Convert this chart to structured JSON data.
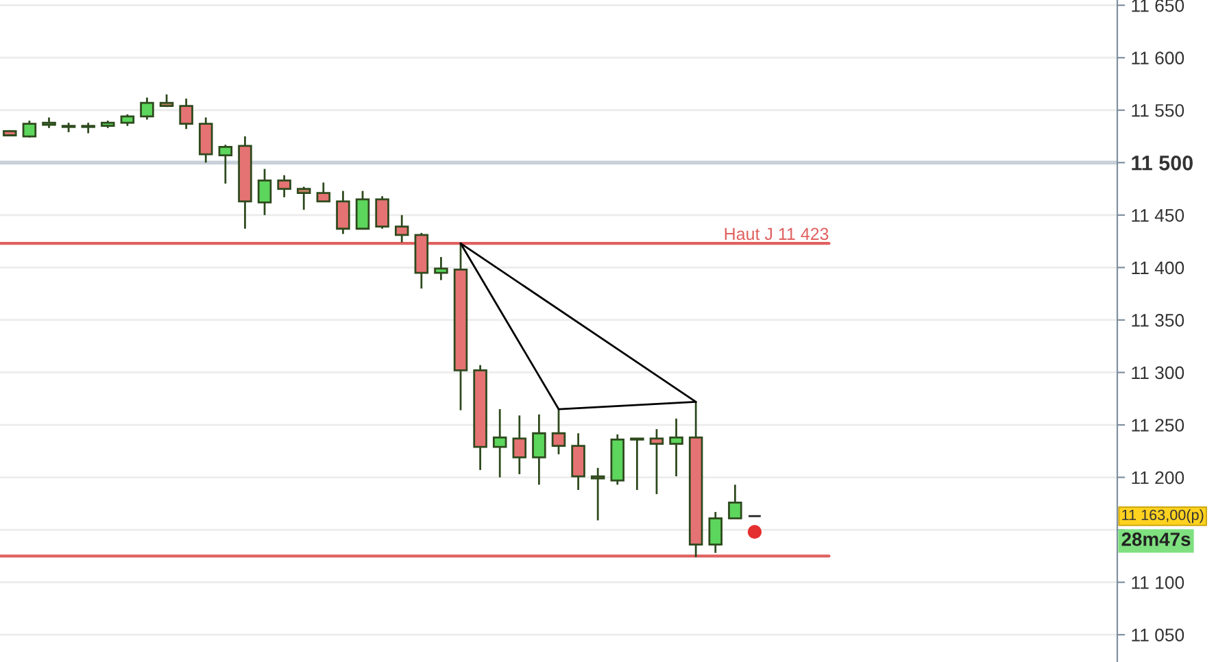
{
  "chart_data": {
    "type": "candlestick",
    "categories": [
      null,
      null,
      null,
      null,
      null,
      null,
      null,
      null,
      null,
      null,
      null,
      null,
      null,
      null,
      null,
      null,
      null,
      null,
      null,
      null,
      null,
      null,
      null,
      null,
      null,
      null,
      null,
      null,
      null,
      null,
      null,
      null,
      null,
      null,
      null,
      null,
      null,
      null,
      null,
      null,
      null,
      null,
      null,
      null,
      null,
      null,
      null,
      null,
      null,
      null,
      null,
      null,
      null,
      null,
      null,
      null,
      null
    ],
    "ohlc": [
      [
        11530,
        11531,
        11525,
        11526
      ],
      [
        11525,
        11540,
        11524,
        11537
      ],
      [
        11536,
        11543,
        11533,
        11538
      ],
      [
        11534,
        11538,
        11529,
        11535
      ],
      [
        11534,
        11538,
        11528,
        11535
      ],
      [
        11535,
        11540,
        11533,
        11538
      ],
      [
        11538,
        11546,
        11535,
        11544
      ],
      [
        11544,
        11562,
        11541,
        11557
      ],
      [
        11557,
        11565,
        11553,
        11554
      ],
      [
        11554,
        11561,
        11532,
        11537
      ],
      [
        11537,
        11543,
        11500,
        11508
      ],
      [
        11507,
        11517,
        11480,
        11515
      ],
      [
        11516,
        11525,
        11437,
        11463
      ],
      [
        11462,
        11494,
        11450,
        11483
      ],
      [
        11483,
        11488,
        11467,
        11475
      ],
      [
        11475,
        11477,
        11455,
        11471
      ],
      [
        11471,
        11481,
        11463,
        11463
      ],
      [
        11463,
        11473,
        11432,
        11437
      ],
      [
        11437,
        11473,
        11437,
        11465
      ],
      [
        11465,
        11468,
        11437,
        11439
      ],
      [
        11439,
        11450,
        11424,
        11431
      ],
      [
        11431,
        11433,
        11380,
        11395
      ],
      [
        11395,
        11410,
        11388,
        11399
      ],
      [
        11398,
        11423,
        11264,
        11302
      ],
      [
        11302,
        11307,
        11207,
        11229
      ],
      [
        11229,
        11265,
        11200,
        11238
      ],
      [
        11237,
        11259,
        11203,
        11219
      ],
      [
        11219,
        11260,
        11193,
        11242
      ],
      [
        11242,
        11265,
        11222,
        11230
      ],
      [
        11230,
        11242,
        11188,
        11201
      ],
      [
        11201,
        11209,
        11159,
        11199
      ],
      [
        11197,
        11241,
        11193,
        11236
      ],
      [
        11236,
        11237,
        11188,
        11237
      ],
      [
        11237,
        11246,
        11184,
        11232
      ],
      [
        11232,
        11256,
        11201,
        11238
      ],
      [
        11238,
        11272,
        11124,
        11136
      ],
      [
        11136,
        11167,
        11128,
        11161
      ],
      [
        11161,
        11193,
        11161,
        11176
      ],
      [
        11163,
        11163,
        11163,
        11163
      ],
      null,
      null,
      null,
      null,
      null,
      null,
      null,
      null,
      null,
      null,
      null,
      null,
      null,
      null,
      null,
      null,
      null,
      null
    ],
    "colors": [
      "#e57373",
      "#5cd65c",
      "#5cd65c",
      "#5cd65c",
      "#5cd65c",
      "#5cd65c",
      "#5cd65c",
      "#5cd65c",
      "#c08060",
      "#e57373",
      "#e57373",
      "#5cd65c",
      "#e57373",
      "#5cd65c",
      "#e57373",
      "#c08060",
      "#e57373",
      "#e57373",
      "#5cd65c",
      "#e57373",
      "#e57373",
      "#e57373",
      "#5cd65c",
      "#e57373",
      "#e57373",
      "#5cd65c",
      "#e57373",
      "#5cd65c",
      "#e57373",
      "#e57373",
      "#c08060",
      "#5cd65c",
      "#5cd65c",
      "#e57373",
      "#5cd65c",
      "#e57373",
      "#5cd65c",
      "#5cd65c",
      "#222222",
      null,
      null,
      null,
      null,
      null,
      null,
      null,
      null,
      null,
      null,
      null,
      null,
      null,
      null,
      null,
      null,
      null,
      null
    ],
    "series": [
      {
        "type": "line",
        "values": [
          null,
          null,
          null,
          null,
          null,
          null,
          null,
          null,
          null,
          null,
          null,
          null,
          null,
          null,
          null,
          null,
          null,
          null,
          null,
          null,
          null,
          null,
          null,
          11423,
          null,
          null,
          null,
          null,
          11265,
          null,
          null,
          null,
          null,
          null,
          null,
          11272,
          null,
          null,
          null,
          null,
          null,
          null,
          null,
          null,
          null,
          null,
          null,
          null,
          null,
          null,
          null,
          null,
          null,
          null,
          null,
          null,
          null
        ],
        "color": "#000000"
      },
      {
        "type": "line",
        "values": [
          null,
          null,
          null,
          null,
          null,
          null,
          null,
          null,
          null,
          null,
          null,
          null,
          null,
          null,
          null,
          null,
          null,
          null,
          null,
          null,
          null,
          null,
          null,
          11423,
          null,
          null,
          null,
          null,
          null,
          null,
          null,
          null,
          null,
          null,
          null,
          11272,
          null,
          null,
          null,
          null,
          null,
          null,
          null,
          null,
          null,
          null,
          null,
          null,
          null,
          null,
          null,
          null,
          null,
          null,
          null,
          null,
          null
        ],
        "color": "#000000"
      },
      {
        "type": "scatter",
        "values": [
          null,
          null,
          null,
          null,
          null,
          null,
          null,
          null,
          null,
          null,
          null,
          null,
          null,
          null,
          null,
          null,
          null,
          null,
          null,
          null,
          null,
          null,
          null,
          null,
          null,
          null,
          null,
          null,
          null,
          null,
          null,
          null,
          null,
          null,
          null,
          null,
          null,
          null,
          11148,
          null,
          null,
          null,
          null,
          null,
          null,
          null,
          null,
          null,
          null,
          null,
          null,
          null,
          null,
          null,
          null,
          null,
          null
        ],
        "color": "#e53030"
      }
    ],
    "ylim": [
      11024,
      11655
    ],
    "yticks": [
      {
        "value": 11050,
        "label": "11 050"
      },
      {
        "value": 11100,
        "label": "11 100"
      },
      {
        "value": 11150,
        "label": null
      },
      {
        "value": 11200,
        "label": "11 200"
      },
      {
        "value": 11250,
        "label": "11 250"
      },
      {
        "value": 11300,
        "label": "11 300"
      },
      {
        "value": 11350,
        "label": "11 350"
      },
      {
        "value": 11400,
        "label": "11 400"
      },
      {
        "value": 11450,
        "label": "11 450"
      },
      {
        "value": 11500,
        "label": "11 500"
      },
      {
        "value": 11550,
        "label": "11 550"
      },
      {
        "value": 11600,
        "label": "11 600"
      },
      {
        "value": 11650,
        "label": "11 650"
      }
    ],
    "ref_lines": [
      {
        "axis": "y",
        "value": 11500,
        "color": "#c8d0d8"
      },
      {
        "axis": "y",
        "value": 11423,
        "label": "Haut J 11 423",
        "color": "#e06060"
      },
      {
        "axis": "y",
        "value": 11125,
        "color": "#e06060"
      }
    ],
    "annotations": [
      "11 163,00(p)",
      "28m47s"
    ],
    "grid": "y",
    "tick_labels": "y"
  }
}
